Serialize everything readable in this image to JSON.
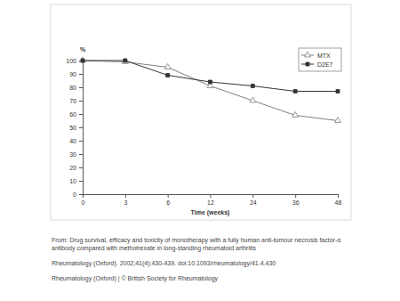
{
  "chart_data": {
    "type": "line",
    "x_label": "Time (weeks)",
    "y_label": "%",
    "categories": [
      "0",
      "3",
      "6",
      "12",
      "24",
      "36",
      "48"
    ],
    "series": [
      {
        "name": "MTX",
        "color": "#7f7f7f",
        "marker": "triangle",
        "values": [
          100,
          99,
          95,
          81,
          70,
          59,
          55
        ]
      },
      {
        "name": "D2E7",
        "color": "#333333",
        "marker": "square",
        "values": [
          100,
          100,
          89,
          84,
          81,
          77,
          77
        ]
      }
    ],
    "ylim": [
      0,
      100
    ],
    "yticks": [
      0,
      10,
      20,
      30,
      40,
      50,
      60,
      70,
      80,
      90,
      100
    ],
    "grid": false,
    "legend": "top-right",
    "annotations": [
      "From: Drug survival, efficacy and toxicity of monotherapy with a fully human anti-tumour necrosis factor-α",
      "antibody compared with methotrexate in long-standing rheumatoid arthritis",
      "Rheumatology (Oxford). 2002;41(4):430-439. doi:10.1093/rheumatology/41.4.430",
      "Rheumatology (Oxford) | © British Society for Rheumatology"
    ]
  }
}
